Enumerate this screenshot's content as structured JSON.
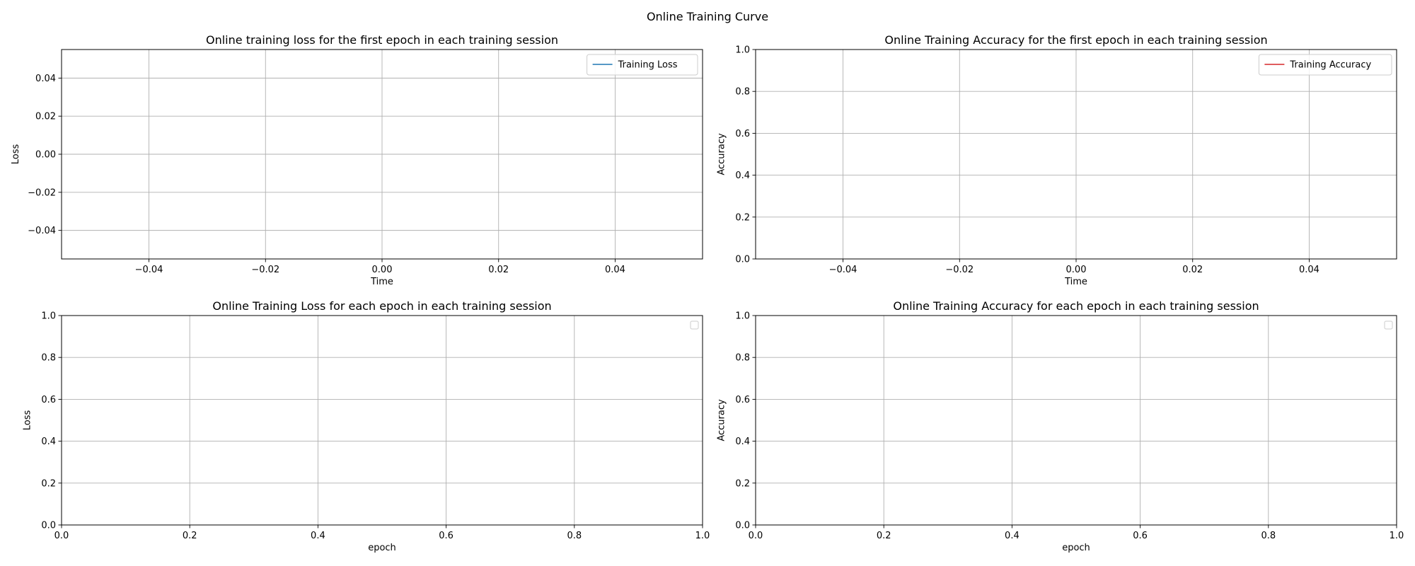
{
  "figure": {
    "suptitle": "Online Training Curve"
  },
  "chart_data": [
    {
      "type": "line",
      "title": "Online training loss for the first epoch in each training session",
      "xlabel": "Time",
      "ylabel": "Loss",
      "xlim": [
        -0.055,
        0.055
      ],
      "ylim": [
        -0.055,
        0.055
      ],
      "xticks": [
        -0.04,
        -0.02,
        0.0,
        0.02,
        0.04
      ],
      "xticklabels": [
        "−0.04",
        "−0.02",
        "0.00",
        "0.02",
        "0.04"
      ],
      "yticks": [
        0.04,
        0.02,
        0.0,
        -0.02,
        -0.04
      ],
      "yticklabels": [
        "0.04",
        "0.02",
        "0.00",
        "−0.02",
        "−0.04"
      ],
      "grid": true,
      "legend": {
        "position": "top-right",
        "entries": [
          {
            "label": "Training Loss",
            "color": "#1f77b4",
            "marker": "line"
          }
        ]
      },
      "series": [
        {
          "name": "Training Loss",
          "color": "#1f77b4",
          "x": [],
          "y": []
        }
      ]
    },
    {
      "type": "line",
      "title": "Online Training Accuracy for the first epoch in each training session",
      "xlabel": "Time",
      "ylabel": "Accuracy",
      "xlim": [
        -0.055,
        0.055
      ],
      "ylim": [
        0,
        1
      ],
      "xticks": [
        -0.04,
        -0.02,
        0.0,
        0.02,
        0.04
      ],
      "xticklabels": [
        "−0.04",
        "−0.02",
        "0.00",
        "0.02",
        "0.04"
      ],
      "yticks": [
        0.0,
        0.2,
        0.4,
        0.6,
        0.8,
        1.0
      ],
      "yticklabels": [
        "0.0",
        "0.2",
        "0.4",
        "0.6",
        "0.8",
        "1.0"
      ],
      "grid": true,
      "legend": {
        "position": "top-right",
        "entries": [
          {
            "label": "Training Accuracy",
            "color": "#d62728",
            "marker": "line"
          }
        ]
      },
      "series": [
        {
          "name": "Training Accuracy",
          "color": "#d62728",
          "x": [],
          "y": []
        }
      ]
    },
    {
      "type": "line",
      "title": "Online Training Loss for each epoch in each training session",
      "xlabel": "epoch",
      "ylabel": "Loss",
      "xlim": [
        0,
        1
      ],
      "ylim": [
        0,
        1
      ],
      "xticks": [
        0.0,
        0.2,
        0.4,
        0.6,
        0.8,
        1.0
      ],
      "xticklabels": [
        "0.0",
        "0.2",
        "0.4",
        "0.6",
        "0.8",
        "1.0"
      ],
      "yticks": [
        0.0,
        0.2,
        0.4,
        0.6,
        0.8,
        1.0
      ],
      "yticklabels": [
        "0.0",
        "0.2",
        "0.4",
        "0.6",
        "0.8",
        "1.0"
      ],
      "grid": true,
      "legend": {
        "position": "top-right",
        "entries": []
      },
      "series": []
    },
    {
      "type": "line",
      "title": "Online Training Accuracy for each epoch in each training session",
      "xlabel": "epoch",
      "ylabel": "Accuracy",
      "xlim": [
        0,
        1
      ],
      "ylim": [
        0,
        1
      ],
      "xticks": [
        0.0,
        0.2,
        0.4,
        0.6,
        0.8,
        1.0
      ],
      "xticklabels": [
        "0.0",
        "0.2",
        "0.4",
        "0.6",
        "0.8",
        "1.0"
      ],
      "yticks": [
        0.0,
        0.2,
        0.4,
        0.6,
        0.8,
        1.0
      ],
      "yticklabels": [
        "0.0",
        "0.2",
        "0.4",
        "0.6",
        "0.8",
        "1.0"
      ],
      "grid": true,
      "legend": {
        "position": "top-right",
        "entries": []
      },
      "series": []
    }
  ]
}
